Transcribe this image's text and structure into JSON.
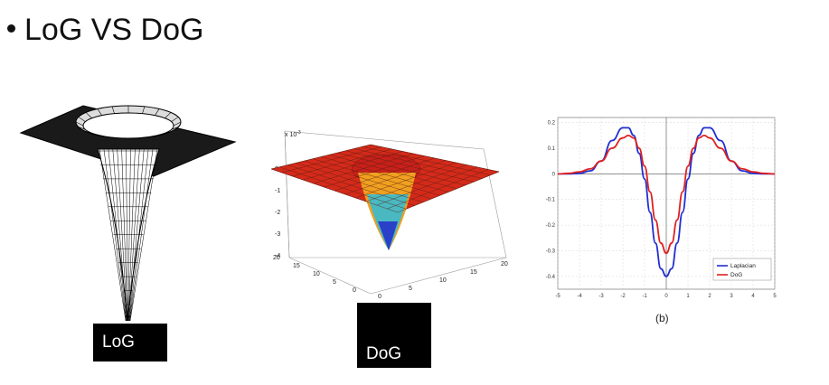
{
  "slide": {
    "title": "LoG VS DoG"
  },
  "figures": {
    "log_label": "LoG",
    "dog_label": "DoG",
    "dog_exponent": "x 10",
    "dog_exponent_power": "-3",
    "dog_z_ticks": [
      "0",
      "-1",
      "-2",
      "-3",
      "-4"
    ],
    "dog_x_ticks": [
      "20",
      "15",
      "10",
      "5",
      "0"
    ],
    "dog_y_ticks": [
      "0",
      "5",
      "10",
      "15",
      "20"
    ],
    "caption_b": "(b)"
  },
  "chart_data": {
    "type": "line",
    "title": "",
    "xlabel": "",
    "ylabel": "",
    "xlim": [
      -5,
      5
    ],
    "ylim": [
      -0.45,
      0.22
    ],
    "x_ticks": [
      -5,
      -4,
      -3,
      -2,
      -1,
      0,
      1,
      2,
      3,
      4,
      5
    ],
    "y_ticks": [
      0.2,
      0.1,
      0,
      -0.1,
      -0.2,
      -0.3,
      -0.4
    ],
    "grid": true,
    "legend_position": "bottom-right",
    "series": [
      {
        "name": "Laplacian",
        "color": "#1f2fd0",
        "x": [
          -5,
          -4.5,
          -4,
          -3.5,
          -3,
          -2.5,
          -2,
          -1.75,
          -1.5,
          -1.25,
          -1,
          -0.75,
          -0.5,
          -0.25,
          0,
          0.25,
          0.5,
          0.75,
          1,
          1.25,
          1.5,
          1.75,
          2,
          2.5,
          3,
          3.5,
          4,
          4.5,
          5
        ],
        "values": [
          0,
          0,
          0.002,
          0.012,
          0.05,
          0.13,
          0.18,
          0.18,
          0.15,
          0.08,
          -0.02,
          -0.15,
          -0.27,
          -0.37,
          -0.4,
          -0.37,
          -0.27,
          -0.15,
          -0.02,
          0.08,
          0.15,
          0.18,
          0.18,
          0.13,
          0.05,
          0.012,
          0.002,
          0,
          0
        ]
      },
      {
        "name": "DoG",
        "color": "#e02020",
        "x": [
          -5,
          -4.5,
          -4,
          -3.5,
          -3,
          -2.5,
          -2,
          -1.75,
          -1.5,
          -1.25,
          -1,
          -0.75,
          -0.5,
          -0.25,
          0,
          0.25,
          0.5,
          0.75,
          1,
          1.25,
          1.5,
          1.75,
          2,
          2.5,
          3,
          3.5,
          4,
          4.5,
          5
        ],
        "values": [
          0,
          0.002,
          0.008,
          0.02,
          0.05,
          0.1,
          0.14,
          0.15,
          0.14,
          0.1,
          0.03,
          -0.07,
          -0.18,
          -0.27,
          -0.31,
          -0.27,
          -0.18,
          -0.07,
          0.03,
          0.1,
          0.14,
          0.15,
          0.14,
          0.1,
          0.05,
          0.02,
          0.008,
          0.002,
          0
        ]
      }
    ]
  }
}
